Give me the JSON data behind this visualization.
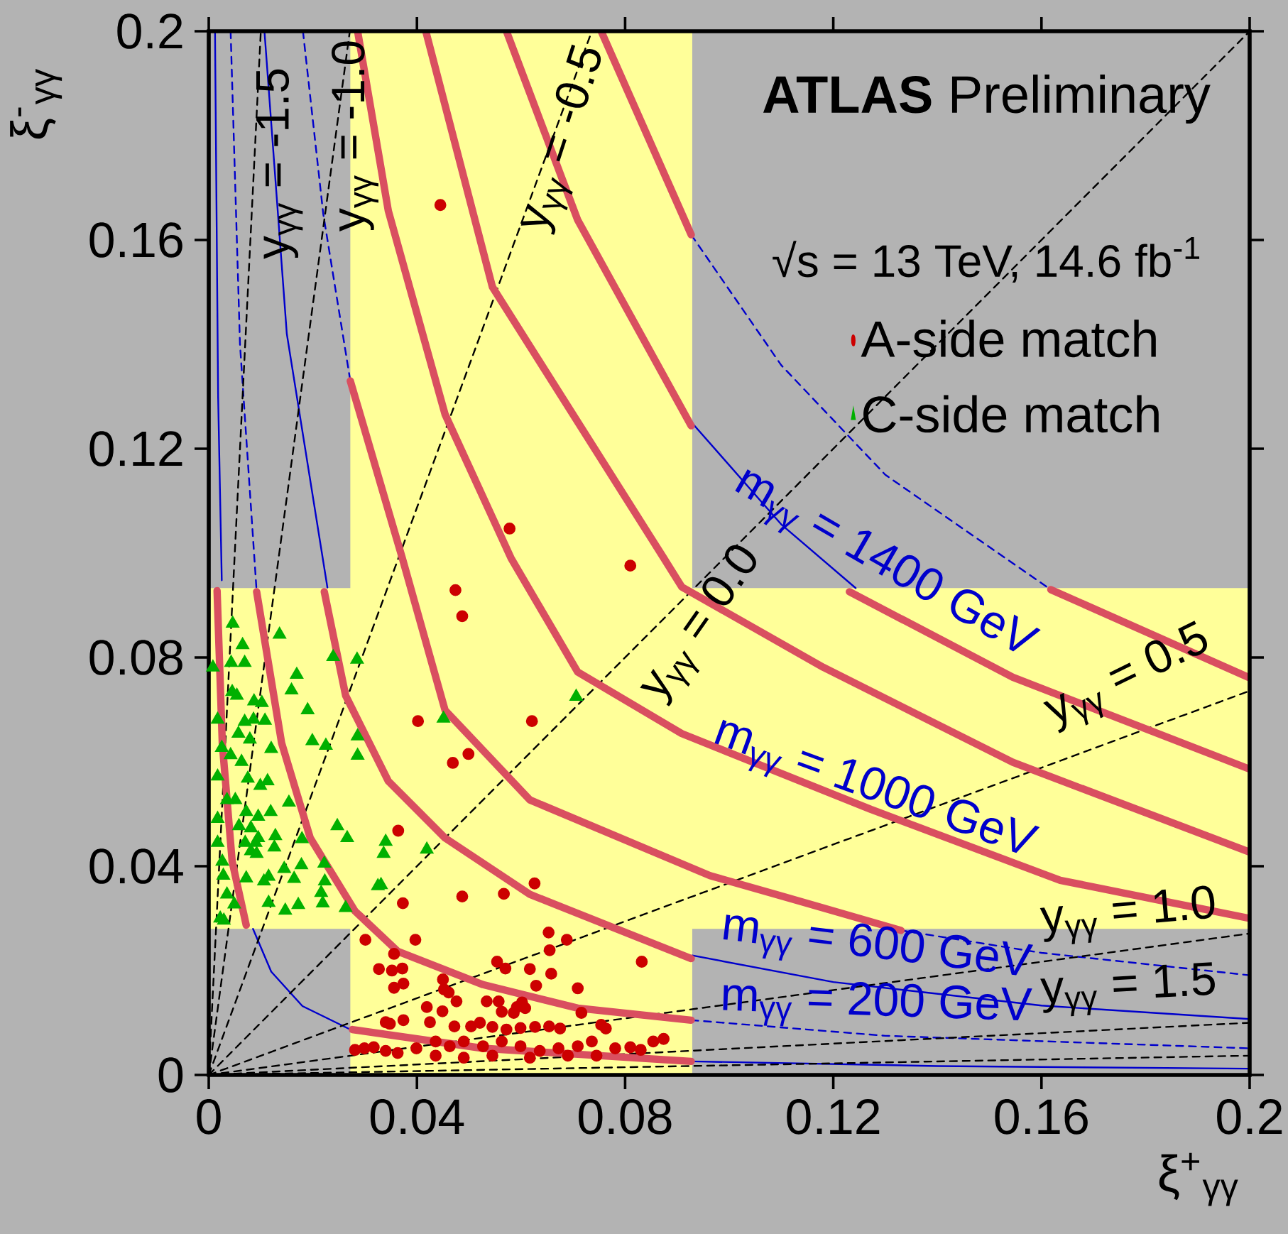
{
  "chart_data": {
    "type": "scatter",
    "xlabel": "ξ$^{+}$$_{γγ}$",
    "ylabel": "ξ$^{-}$$_{γγ}$",
    "xlim": [
      0,
      0.2
    ],
    "ylim": [
      0,
      0.2
    ],
    "xticks": [
      0,
      0.04,
      0.08,
      0.12,
      0.16,
      0.2
    ],
    "yticks": [
      0,
      0.04,
      0.08,
      0.12,
      0.16,
      0.2
    ],
    "legend": "top right",
    "bands": [
      {
        "axis": "y",
        "from": 0.028,
        "to": 0.0933,
        "color": "#ffff99"
      },
      {
        "axis": "x",
        "from": 0.0272,
        "to": 0.0929,
        "color": "#ffff99"
      }
    ],
    "annotations": [
      "**ATLAS** Preliminary",
      "√s = 13 TeV, 14.6 fb$^{-1}$",
      {
        "text": "y$_{γγ}$ = -1.5",
        "x": 0.0136,
        "y": 0.1747
      },
      {
        "text": "y$_{γγ}$ = -1.0",
        "x": 0.0281,
        "y": 0.18
      },
      "y$_{γγ}$ = -0.5",
      "y$_{γγ}$ = 0.0",
      "y$_{γγ}$ = 0.5",
      "y$_{γγ}$ = 1.0",
      "y$_{γγ}$ = 1.5",
      "m$_{γγ}$ = 1400 GeV",
      "m$_{γγ}$ = 1000 GeV",
      "m$_{γγ}$ = 600 GeV",
      "m$_{γγ}$ = 200 GeV"
    ],
    "series": [
      {
        "type": "line",
        "color": "#0000cc",
        "line_style": "solid",
        "x": [
          0.0012,
          0.0018,
          0.0025
        ],
        "values": [
          0.2,
          0.13,
          0.0948
        ]
      },
      {
        "type": "line",
        "color": "#0000cc",
        "line_style": "solid",
        "x": [
          0.0085,
          0.012,
          0.018,
          0.0272
        ],
        "values": [
          0.028,
          0.0198,
          0.0132,
          0.0087
        ]
      },
      {
        "type": "line",
        "color": "#0000cc",
        "line_style": "solid",
        "x": [
          0.0929,
          0.14,
          0.2
        ],
        "values": [
          0.0026,
          0.0017,
          0.0012
        ]
      },
      {
        "type": "line",
        "color": "#0000cc",
        "line_style": "solid",
        "x": [
          0.0107,
          0.015,
          0.0228
        ],
        "values": [
          0.2,
          0.142,
          0.0934
        ]
      },
      {
        "type": "line",
        "color": "#0000cc",
        "line_style": "solid",
        "x": [
          0.0929,
          0.12,
          0.16,
          0.2
        ],
        "values": [
          0.0229,
          0.0178,
          0.0133,
          0.0107
        ]
      },
      {
        "type": "line",
        "color": "#0000cc",
        "line_style": "solid",
        "x": [
          0.0929,
          0.11,
          0.1243
        ],
        "values": [
          0.1249,
          0.1055,
          0.0933
        ]
      },
      {
        "type": "line",
        "color": "#0000cc",
        "line_style": "dashed",
        "x": [
          0.0042,
          0.006,
          0.0092
        ],
        "values": [
          0.2,
          0.14,
          0.0926
        ]
      },
      {
        "type": "line",
        "color": "#0000cc",
        "line_style": "dashed",
        "x": [
          0.0181,
          0.022,
          0.0272
        ],
        "values": [
          0.2,
          0.165,
          0.133
        ]
      },
      {
        "type": "line",
        "color": "#0000cc",
        "line_style": "dashed",
        "x": [
          0.0927,
          0.11,
          0.13,
          0.1618
        ],
        "values": [
          0.161,
          0.136,
          0.115,
          0.093
        ]
      },
      {
        "type": "line",
        "color": "#0000cc",
        "line_style": "dashed",
        "x": [
          0.133,
          0.16,
          0.2
        ],
        "values": [
          0.0277,
          0.0234,
          0.0191
        ]
      },
      {
        "type": "line",
        "color": "#0000cc",
        "line_style": "dashed",
        "x": [
          0.0927,
          0.13,
          0.2
        ],
        "values": [
          0.0105,
          0.0075,
          0.0051
        ]
      },
      {
        "type": "line",
        "color": "#000000",
        "line_style": "dashed",
        "x": [
          0,
          0.01
        ],
        "values": [
          0,
          0.2
        ]
      },
      {
        "type": "line",
        "color": "#000000",
        "line_style": "dashed",
        "x": [
          0,
          0.0271
        ],
        "values": [
          0,
          0.2
        ]
      },
      {
        "type": "line",
        "color": "#000000",
        "line_style": "dashed",
        "x": [
          0,
          0.0736
        ],
        "values": [
          0,
          0.2
        ]
      },
      {
        "type": "line",
        "color": "#000000",
        "line_style": "dashed",
        "x": [
          0,
          0.2
        ],
        "values": [
          0,
          0.2
        ]
      },
      {
        "type": "line",
        "color": "#000000",
        "line_style": "dashed",
        "x": [
          0,
          0.2
        ],
        "values": [
          0,
          0.0736
        ]
      },
      {
        "type": "line",
        "color": "#000000",
        "line_style": "dashed",
        "x": [
          0,
          0.2
        ],
        "values": [
          0,
          0.0271
        ]
      },
      {
        "type": "line",
        "color": "#000000",
        "line_style": "dashed",
        "x": [
          0,
          0.2
        ],
        "values": [
          0,
          0.01
        ]
      },
      {
        "type": "line",
        "color": "#000000",
        "line_style": "dashed",
        "x": [
          0,
          0.2
        ],
        "values": [
          0,
          0.0037
        ]
      },
      {
        "type": "line",
        "color": "#d94f60",
        "line_style": "solid",
        "x": [
          0.0286,
          0.0345,
          0.0454,
          0.0581,
          0.0709,
          0.0909,
          0.1272,
          0.1636,
          0.2
        ],
        "values": [
          0.2,
          0.1656,
          0.1266,
          0.099,
          0.0772,
          0.0654,
          0.0509,
          0.0373,
          0.03
        ]
      },
      {
        "type": "line",
        "color": "#d94f60",
        "line_style": "solid",
        "x": [
          0.0417,
          0.0545,
          0.0872,
          0.0909,
          0.1181,
          0.1545,
          0.2
        ],
        "values": [
          0.2,
          0.151,
          0.0994,
          0.0935,
          0.0781,
          0.0599,
          0.0427
        ]
      },
      {
        "type": "line",
        "color": "#d94f60",
        "line_style": "solid",
        "x": [
          0.0572,
          0.0709,
          0.0927
        ],
        "values": [
          0.2,
          0.1638,
          0.1244
        ]
      },
      {
        "type": "line",
        "color": "#d94f60",
        "line_style": "solid",
        "x": [
          0.1231,
          0.1545,
          0.2
        ],
        "values": [
          0.0926,
          0.0762,
          0.0586
        ]
      },
      {
        "type": "line",
        "color": "#d94f60",
        "line_style": "solid",
        "x": [
          0.0754,
          0.0927
        ],
        "values": [
          0.2,
          0.161
        ]
      },
      {
        "type": "line",
        "color": "#d94f60",
        "line_style": "solid",
        "x": [
          0.1618,
          0.2
        ],
        "values": [
          0.093,
          0.0761
        ]
      },
      {
        "type": "line",
        "color": "#d94f60",
        "line_style": "solid",
        "x": [
          0.0272,
          0.0372,
          0.0454,
          0.0617,
          0.0963,
          0.109,
          0.133
        ],
        "values": [
          0.133,
          0.099,
          0.0699,
          0.0527,
          0.0382,
          0.0346,
          0.0277
        ]
      },
      {
        "type": "line",
        "color": "#d94f60",
        "line_style": "solid",
        "x": [
          0.0016,
          0.0026,
          0.0045,
          0.0072
        ],
        "values": [
          0.0928,
          0.0636,
          0.0409,
          0.0287
        ]
      },
      {
        "type": "line",
        "color": "#d94f60",
        "line_style": "solid",
        "x": [
          0.0092,
          0.014,
          0.0195,
          0.0281,
          0.0363,
          0.0527,
          0.0709,
          0.0927
        ],
        "values": [
          0.0926,
          0.0636,
          0.0454,
          0.0314,
          0.0237,
          0.0173,
          0.0128,
          0.0105
        ]
      },
      {
        "type": "line",
        "color": "#d94f60",
        "line_style": "solid",
        "x": [
          0.0222,
          0.0263,
          0.0345,
          0.0454,
          0.0617,
          0.0927
        ],
        "values": [
          0.0926,
          0.0727,
          0.0563,
          0.0454,
          0.0346,
          0.0223
        ]
      },
      {
        "type": "line",
        "color": "#d94f60",
        "line_style": "solid",
        "x": [
          0.0276,
          0.0527,
          0.0927
        ],
        "values": [
          0.0087,
          0.0051,
          0.0026
        ]
      },
      {
        "name": "A-side match",
        "color": "#cc0000",
        "marker": "circle",
        "x": [
          0.081,
          0.0474,
          0.0487,
          0.0402,
          0.0621,
          0.0469,
          0.0499,
          0.0364,
          0.0626,
          0.0487,
          0.0567,
          0.0373,
          0.0301,
          0.0397,
          0.0653,
          0.0655,
          0.0688,
          0.0832,
          0.0356,
          0.0327,
          0.0352,
          0.0372,
          0.0554,
          0.057,
          0.0617,
          0.0658,
          0.0356,
          0.0374,
          0.045,
          0.0452,
          0.0461,
          0.0629,
          0.0709,
          0.0534,
          0.0557,
          0.0602,
          0.0592,
          0.0419,
          0.0449,
          0.0476,
          0.0563,
          0.0586,
          0.0608,
          0.0716,
          0.034,
          0.0348,
          0.0374,
          0.0425,
          0.0472,
          0.0504,
          0.0521,
          0.0545,
          0.0572,
          0.0599,
          0.0627,
          0.0654,
          0.0675,
          0.0754,
          0.0763,
          0.0874,
          0.0281,
          0.0299,
          0.0317,
          0.034,
          0.0363,
          0.0399,
          0.0436,
          0.0463,
          0.049,
          0.0527,
          0.0563,
          0.0599,
          0.0636,
          0.0672,
          0.0709,
          0.0736,
          0.0781,
          0.081,
          0.083,
          0.0854,
          0.0436,
          0.049,
          0.0545,
          0.0617,
          0.069,
          0.0745,
          0.0445,
          0.0578
        ],
        "values": [
          0.0976,
          0.0929,
          0.0879,
          0.0678,
          0.0678,
          0.0598,
          0.0615,
          0.0468,
          0.0367,
          0.0342,
          0.0347,
          0.0329,
          0.0259,
          0.0259,
          0.0273,
          0.0239,
          0.0259,
          0.0217,
          0.0232,
          0.0203,
          0.02,
          0.0204,
          0.0217,
          0.0204,
          0.0203,
          0.0194,
          0.0167,
          0.0175,
          0.0183,
          0.0164,
          0.0158,
          0.0171,
          0.0166,
          0.0141,
          0.0141,
          0.0139,
          0.013,
          0.013,
          0.0122,
          0.0141,
          0.0121,
          0.0119,
          0.0128,
          0.0119,
          0.0101,
          0.0098,
          0.0105,
          0.0101,
          0.0093,
          0.0093,
          0.01,
          0.0092,
          0.0087,
          0.009,
          0.0092,
          0.0093,
          0.0089,
          0.0096,
          0.0089,
          0.0069,
          0.0048,
          0.0051,
          0.0053,
          0.0046,
          0.0042,
          0.0051,
          0.0064,
          0.0055,
          0.0064,
          0.0055,
          0.0064,
          0.0055,
          0.0046,
          0.0051,
          0.0055,
          0.0064,
          0.0051,
          0.0053,
          0.0048,
          0.0064,
          0.0037,
          0.0033,
          0.0037,
          0.0033,
          0.0037,
          0.0037,
          0.1667,
          0.1047
        ]
      },
      {
        "name": "C-side match",
        "color": "#00b000",
        "marker": "triangle",
        "x": [
          0.0046,
          0.0065,
          0.0136,
          0.0069,
          0.0043,
          0.0008,
          0.0169,
          0.0159,
          0.0239,
          0.0285,
          0.0045,
          0.0054,
          0.0102,
          0.0087,
          0.0086,
          0.0108,
          0.0069,
          0.019,
          0.0017,
          0.0057,
          0.0079,
          0.012,
          0.0199,
          0.0225,
          0.0286,
          0.0286,
          0.0025,
          0.0042,
          0.0063,
          0.0017,
          0.0075,
          0.0099,
          0.0113,
          0.0035,
          0.0051,
          0.0154,
          0.0072,
          0.0095,
          0.0119,
          0.0017,
          0.0058,
          0.0081,
          0.0095,
          0.007,
          0.009,
          0.0128,
          0.0247,
          0.0266,
          0.0017,
          0.0026,
          0.0081,
          0.0092,
          0.0126,
          0.0145,
          0.0179,
          0.0178,
          0.0336,
          0.0331,
          0.0222,
          0.0028,
          0.0072,
          0.0106,
          0.0115,
          0.0164,
          0.0223,
          0.0216,
          0.0035,
          0.0049,
          0.0115,
          0.0172,
          0.0147,
          0.0219,
          0.0263,
          0.0022,
          0.0029,
          0.0451,
          0.0706,
          0.0419,
          0.0325,
          0.034
        ],
        "values": [
          0.0865,
          0.0824,
          0.0844,
          0.079,
          0.079,
          0.0781,
          0.0767,
          0.0737,
          0.0801,
          0.0796,
          0.0734,
          0.0727,
          0.0713,
          0.0716,
          0.0681,
          0.0679,
          0.0677,
          0.0699,
          0.0681,
          0.0654,
          0.0643,
          0.0625,
          0.064,
          0.0631,
          0.0649,
          0.0612,
          0.0627,
          0.0613,
          0.06,
          0.0572,
          0.0568,
          0.0554,
          0.0563,
          0.0527,
          0.0527,
          0.0522,
          0.0504,
          0.0495,
          0.0504,
          0.0491,
          0.0477,
          0.0473,
          0.0454,
          0.0445,
          0.0445,
          0.0458,
          0.0477,
          0.0454,
          0.0445,
          0.0409,
          0.0429,
          0.0424,
          0.0436,
          0.0395,
          0.0452,
          0.0402,
          0.0424,
          0.0364,
          0.0405,
          0.0382,
          0.0377,
          0.0371,
          0.038,
          0.0376,
          0.0371,
          0.0349,
          0.0346,
          0.0327,
          0.033,
          0.0326,
          0.0315,
          0.0329,
          0.032,
          0.03,
          0.0296,
          0.0683,
          0.0725,
          0.0432,
          0.0362,
          0.0447
        ]
      }
    ]
  }
}
